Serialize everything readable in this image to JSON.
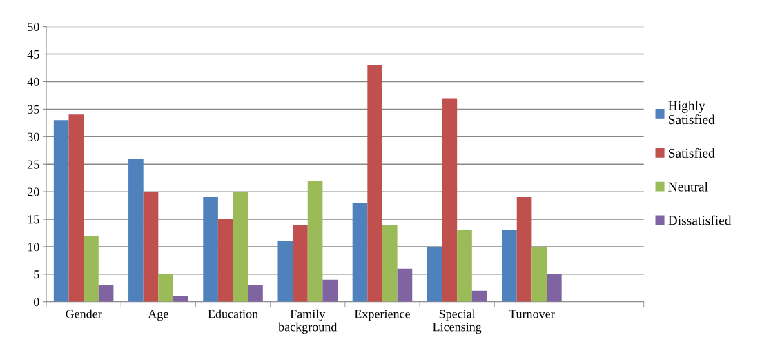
{
  "chart_data": {
    "type": "bar",
    "categories": [
      "Gender",
      "Age",
      "Education",
      "Family\nbackground",
      "Experience",
      "Special\nLicensing",
      "Turnover",
      null
    ],
    "series": [
      {
        "name": "Highly\nSatisfied",
        "color": "#4f81bd",
        "values": [
          33,
          26,
          19,
          11,
          18,
          10,
          13,
          null
        ]
      },
      {
        "name": "Satisfied",
        "color": "#c0504d",
        "values": [
          34,
          20,
          15,
          14,
          43,
          37,
          19,
          null
        ]
      },
      {
        "name": "Neutral",
        "color": "#9bbb59",
        "values": [
          12,
          5,
          20,
          22,
          14,
          13,
          10,
          null
        ]
      },
      {
        "name": "Dissatisfied",
        "color": "#8064a2",
        "values": [
          3,
          1,
          3,
          4,
          6,
          2,
          5,
          null
        ]
      }
    ],
    "ylim": [
      0,
      50
    ],
    "yticks": [
      0,
      5,
      10,
      15,
      20,
      25,
      30,
      35,
      40,
      45,
      50
    ],
    "grid": "y",
    "legend": "right"
  }
}
